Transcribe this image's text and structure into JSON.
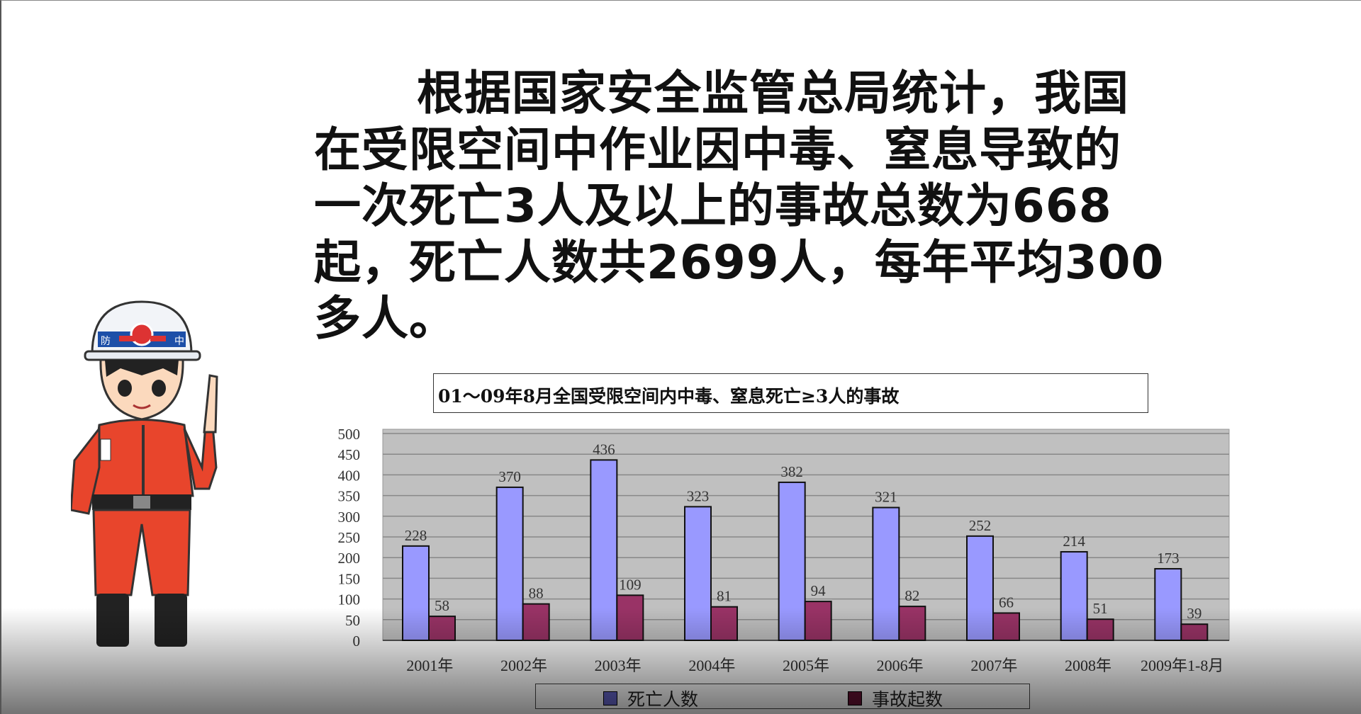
{
  "paragraph": "根据国家安全监管总局统计，我国在受限空间中作业因中毒、窒息导致的一次死亡3人及以上的事故总数为668起，死亡人数共2699人，每年平均300多人。",
  "paragraph_lines": [
    "根据国家安全监管总局统计，我国",
    "在受限空间中作业因中毒、窒息导致的",
    "一次死亡3人及以上的事故总数为668",
    "起，死亡人数共2699人，每年平均300",
    "多人。"
  ],
  "character": {
    "helmet_text_left": "防",
    "helmet_text_right": "中"
  },
  "chart_data": {
    "type": "bar",
    "title": "01～09年8月全国受限空间内中毒、窒息死亡≥3人的事故",
    "categories": [
      "2001年",
      "2002年",
      "2003年",
      "2004年",
      "2005年",
      "2006年",
      "2007年",
      "2008年",
      "2009年1-8月"
    ],
    "series": [
      {
        "name": "死亡人数",
        "color": "#9999ff",
        "values": [
          228,
          370,
          436,
          323,
          382,
          321,
          252,
          214,
          173
        ]
      },
      {
        "name": "事故起数",
        "color": "#993366",
        "values": [
          58,
          88,
          109,
          81,
          94,
          82,
          66,
          51,
          39
        ]
      }
    ],
    "ylim": [
      0,
      500
    ],
    "yticks": [
      0,
      50,
      100,
      150,
      200,
      250,
      300,
      350,
      400,
      450,
      500
    ],
    "grid": true,
    "plot_background": "#c0c0c0",
    "legend_position": "bottom"
  }
}
